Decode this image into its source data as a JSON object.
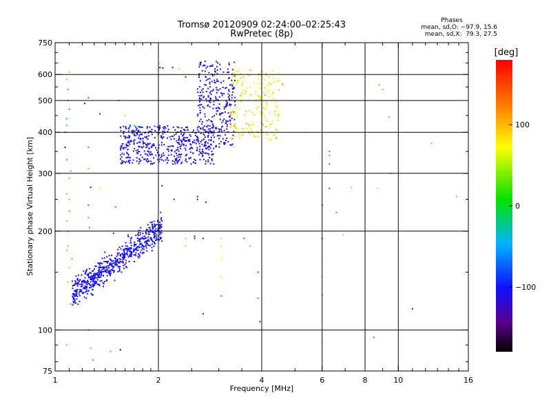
{
  "header": {
    "title": "Tromsø 20120909 02:24:00–02:25:43",
    "subtitle": "RwPretec (8p)"
  },
  "stats": {
    "heading": "Phases",
    "line_o": "mean, sd,O: −97.9, 15.6",
    "line_x": "mean, sd,X:  79.3, 27.5"
  },
  "colorbar": {
    "unit_label": "[deg]",
    "range": [
      -180,
      180
    ],
    "ticks": [
      100,
      0,
      -100
    ],
    "tick_labels": [
      "100",
      "0",
      "−100"
    ]
  },
  "chart_data": {
    "type": "scatter",
    "x_scale": "log",
    "y_scale": "log",
    "xlabel": "Frequency [MHz]",
    "ylabel": "Stationary phase Virtual Height [km]",
    "xlim": [
      1,
      16
    ],
    "ylim": [
      75,
      750
    ],
    "x_ticks": [
      1,
      2,
      4,
      6,
      8,
      10,
      16
    ],
    "x_tick_labels": [
      "1",
      "2",
      "4",
      "6",
      "8",
      "10",
      "16"
    ],
    "x_gridlines": [
      1,
      2,
      4,
      6,
      8,
      10,
      16
    ],
    "x_minor_ticks": [
      1.1,
      1.2,
      1.3,
      1.4,
      1.5,
      1.6,
      1.7,
      1.8,
      1.9,
      2.5,
      3,
      3.5,
      5,
      7,
      9,
      11,
      12,
      13,
      14,
      15
    ],
    "y_ticks": [
      75,
      100,
      200,
      300,
      400,
      500,
      600,
      750
    ],
    "y_tick_labels": [
      "75",
      "100",
      "200",
      "300",
      "400",
      "500",
      "600",
      "750"
    ],
    "y_gridlines": [
      100,
      200,
      300,
      400,
      500,
      600
    ],
    "y_minor_ticks": [
      80,
      90,
      150,
      250,
      350,
      450,
      550,
      650,
      700
    ],
    "grid": true,
    "clusters": [
      {
        "name": "E/F1 trace",
        "count": 650,
        "x_range": [
          1.12,
          2.05
        ],
        "y_range": [
          128,
          205
        ],
        "x_at_ymin": 1.12,
        "x_at_ymax": 2.05,
        "phase": -105,
        "phase_sd": 8,
        "spread": 0.07
      },
      {
        "name": "F2 lower trace",
        "count": 500,
        "x_range": [
          1.55,
          2.9
        ],
        "y_range": [
          320,
          420
        ],
        "phase": -105,
        "phase_sd": 8
      },
      {
        "name": "F2 cusp",
        "count": 300,
        "x_range": [
          2.6,
          3.35
        ],
        "y_range": [
          360,
          660
        ],
        "phase": -110,
        "phase_sd": 12
      },
      {
        "name": "X trace",
        "count": 200,
        "x_range": [
          3.25,
          4.5
        ],
        "y_range": [
          380,
          620
        ],
        "phase": 75,
        "phase_sd": 30
      }
    ],
    "scattered_points": [
      {
        "x": 1.08,
        "y": 580,
        "phase": 30
      },
      {
        "x": 1.09,
        "y": 540,
        "phase": 10
      },
      {
        "x": 1.1,
        "y": 470,
        "phase": -60
      },
      {
        "x": 1.08,
        "y": 330,
        "phase": 10
      },
      {
        "x": 1.1,
        "y": 290,
        "phase": 30
      },
      {
        "x": 1.08,
        "y": 260,
        "phase": 25
      },
      {
        "x": 1.1,
        "y": 230,
        "phase": 20
      },
      {
        "x": 1.09,
        "y": 200,
        "phase": 15
      },
      {
        "x": 1.08,
        "y": 175,
        "phase": 20
      },
      {
        "x": 1.1,
        "y": 155,
        "phase": 40
      },
      {
        "x": 1.09,
        "y": 140,
        "phase": 30
      },
      {
        "x": 1.08,
        "y": 90,
        "phase": 30
      },
      {
        "x": 1.07,
        "y": 360,
        "phase": -100
      },
      {
        "x": 1.07,
        "y": 400,
        "phase": -90
      },
      {
        "x": 1.08,
        "y": 420,
        "phase": -20
      },
      {
        "x": 1.1,
        "y": 610,
        "phase": 40
      },
      {
        "x": 1.09,
        "y": 500,
        "phase": 20
      },
      {
        "x": 1.08,
        "y": 440,
        "phase": 5
      },
      {
        "x": 1.11,
        "y": 305,
        "phase": 15
      },
      {
        "x": 1.1,
        "y": 250,
        "phase": 25
      },
      {
        "x": 1.09,
        "y": 180,
        "phase": 35
      },
      {
        "x": 1.08,
        "y": 215,
        "phase": 35
      },
      {
        "x": 1.12,
        "y": 165,
        "phase": 20
      },
      {
        "x": 1.11,
        "y": 120,
        "phase": -10
      },
      {
        "x": 1.25,
        "y": 510,
        "phase": 150
      },
      {
        "x": 1.25,
        "y": 360,
        "phase": 140
      },
      {
        "x": 1.27,
        "y": 272,
        "phase": -120
      },
      {
        "x": 1.25,
        "y": 240,
        "phase": 150
      },
      {
        "x": 1.25,
        "y": 220,
        "phase": 120
      },
      {
        "x": 1.26,
        "y": 205,
        "phase": 130
      },
      {
        "x": 1.25,
        "y": 100,
        "phase": 140
      },
      {
        "x": 1.27,
        "y": 88,
        "phase": 120
      },
      {
        "x": 1.29,
        "y": 81,
        "phase": -20
      },
      {
        "x": 1.35,
        "y": 270,
        "phase": 80
      },
      {
        "x": 1.25,
        "y": 310,
        "phase": 40
      },
      {
        "x": 1.22,
        "y": 490,
        "phase": -110
      },
      {
        "x": 1.45,
        "y": 86,
        "phase": 130
      },
      {
        "x": 1.55,
        "y": 87,
        "phase": -170
      },
      {
        "x": 1.5,
        "y": 237,
        "phase": 160
      },
      {
        "x": 1.53,
        "y": 500,
        "phase": 140
      },
      {
        "x": 1.6,
        "y": 450,
        "phase": 50
      },
      {
        "x": 1.7,
        "y": 420,
        "phase": 10
      },
      {
        "x": 1.35,
        "y": 455,
        "phase": -100
      },
      {
        "x": 1.42,
        "y": 160,
        "phase": -120
      },
      {
        "x": 1.48,
        "y": 197,
        "phase": -100
      },
      {
        "x": 2.02,
        "y": 630,
        "phase": -110
      },
      {
        "x": 2.06,
        "y": 628,
        "phase": -105
      },
      {
        "x": 2.05,
        "y": 215,
        "phase": -110
      },
      {
        "x": 2.05,
        "y": 275,
        "phase": -100
      },
      {
        "x": 2.02,
        "y": 650,
        "phase": 90
      },
      {
        "x": 2.2,
        "y": 630,
        "phase": -105
      },
      {
        "x": 2.22,
        "y": 250,
        "phase": -110
      },
      {
        "x": 2.3,
        "y": 625,
        "phase": 90
      },
      {
        "x": 2.4,
        "y": 590,
        "phase": -100
      },
      {
        "x": 2.6,
        "y": 255,
        "phase": -110
      },
      {
        "x": 2.6,
        "y": 250,
        "phase": -120
      },
      {
        "x": 2.55,
        "y": 193,
        "phase": -110
      },
      {
        "x": 2.55,
        "y": 190,
        "phase": -120
      },
      {
        "x": 2.4,
        "y": 190,
        "phase": 95
      },
      {
        "x": 2.4,
        "y": 180,
        "phase": 90
      },
      {
        "x": 2.75,
        "y": 245,
        "phase": -100
      },
      {
        "x": 2.7,
        "y": 190,
        "phase": -100
      },
      {
        "x": 2.7,
        "y": 112,
        "phase": -110
      },
      {
        "x": 3.05,
        "y": 190,
        "phase": 100
      },
      {
        "x": 3.05,
        "y": 180,
        "phase": 80
      },
      {
        "x": 3.05,
        "y": 165,
        "phase": 70
      },
      {
        "x": 3.05,
        "y": 145,
        "phase": 60
      },
      {
        "x": 3.05,
        "y": 127,
        "phase": -50
      },
      {
        "x": 3.55,
        "y": 190,
        "phase": 150
      },
      {
        "x": 3.7,
        "y": 180,
        "phase": 120
      },
      {
        "x": 3.9,
        "y": 150,
        "phase": -80
      },
      {
        "x": 3.9,
        "y": 125,
        "phase": 150
      },
      {
        "x": 3.95,
        "y": 106,
        "phase": -90
      },
      {
        "x": 4.6,
        "y": 560,
        "phase": 140
      },
      {
        "x": 5.4,
        "y": 400,
        "phase": 90
      },
      {
        "x": 6.0,
        "y": 240,
        "phase": -60
      },
      {
        "x": 6.0,
        "y": 190,
        "phase": -90
      },
      {
        "x": 6.0,
        "y": 165,
        "phase": 60
      },
      {
        "x": 6.0,
        "y": 145,
        "phase": 40
      },
      {
        "x": 6.0,
        "y": 128,
        "phase": -40
      },
      {
        "x": 6.0,
        "y": 92,
        "phase": 60
      },
      {
        "x": 6.3,
        "y": 350,
        "phase": 150
      },
      {
        "x": 6.3,
        "y": 340,
        "phase": 130
      },
      {
        "x": 6.3,
        "y": 320,
        "phase": -60
      },
      {
        "x": 6.3,
        "y": 270,
        "phase": -80
      },
      {
        "x": 6.6,
        "y": 228,
        "phase": 140
      },
      {
        "x": 6.9,
        "y": 195,
        "phase": 90
      },
      {
        "x": 7.3,
        "y": 272,
        "phase": 100
      },
      {
        "x": 8.5,
        "y": 95,
        "phase": 140
      },
      {
        "x": 8.7,
        "y": 270,
        "phase": 50
      },
      {
        "x": 8.8,
        "y": 558,
        "phase": 130
      },
      {
        "x": 9.0,
        "y": 540,
        "phase": 110
      },
      {
        "x": 9.4,
        "y": 445,
        "phase": 30
      },
      {
        "x": 9.5,
        "y": 300,
        "phase": -40
      },
      {
        "x": 11.0,
        "y": 116,
        "phase": -150
      },
      {
        "x": 12.5,
        "y": 370,
        "phase": 110
      },
      {
        "x": 14.8,
        "y": 255,
        "phase": 110
      }
    ]
  }
}
